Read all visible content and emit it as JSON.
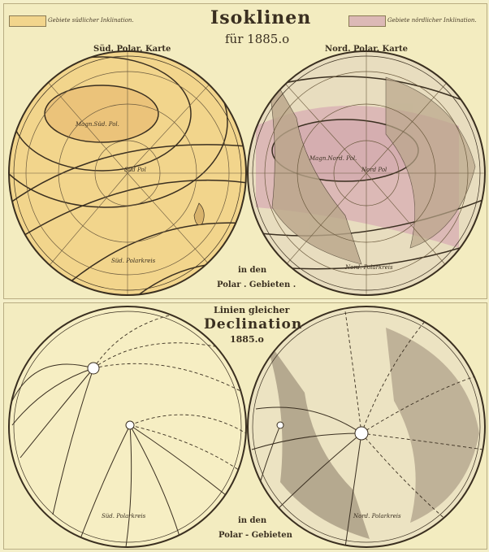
{
  "top": {
    "title": "Isoklinen",
    "subtitle": "für 1885.o",
    "legend_south": "Gebiete südlicher Inklination.",
    "legend_north": "Gebiete nördlicher Inklination.",
    "south_map_title": "Süd. Polar. Karte",
    "north_map_title": "Nord. Polar. Karte",
    "caption_line1": "in den",
    "caption_line2": "Polar . Gebieten .",
    "south_pole_label": "Magn.Süd. Pol.",
    "north_pole_label": "Magn.Nord. Pol.",
    "south_geo_pole": "Süd Pol",
    "north_geo_pole": "Nord Pol",
    "south_circle": "Süd. Polarkreis",
    "north_circle": "Nord. Polarkreis",
    "colors": {
      "south_fill": "#f2d58c",
      "north_fill": "#dcb9b6",
      "paper": "#f3ecc0"
    }
  },
  "bottom": {
    "title_line1": "Linien gleicher",
    "title_line2": "Declination",
    "title_line3": "1885.o",
    "caption_line1": "in den",
    "caption_line2": "Polar - Gebieten",
    "south_circle": "Süd. Polarkreis",
    "north_circle": "Nord. Polarkreis"
  }
}
